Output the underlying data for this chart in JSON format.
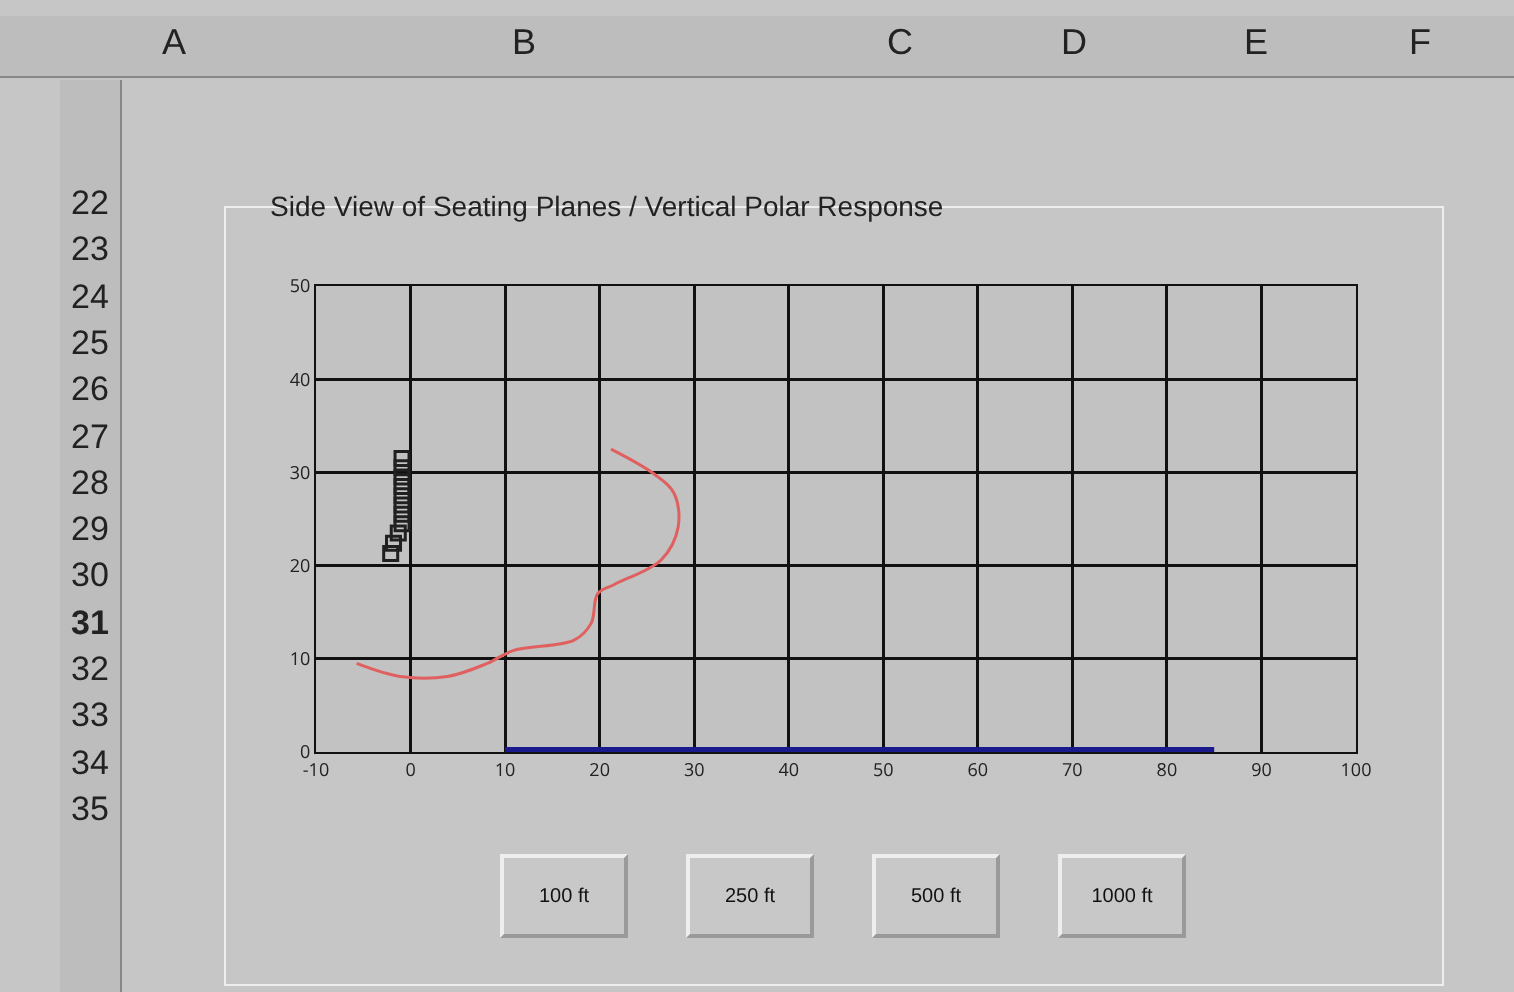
{
  "chart_data": {
    "type": "line",
    "title": "Side View of Seating Planes / Vertical Polar Response",
    "xlim": [
      -10,
      100
    ],
    "xticks": [
      -10,
      0,
      10,
      20,
      30,
      40,
      50,
      60,
      70,
      80,
      90,
      100
    ],
    "ylim": [
      0,
      50
    ],
    "yticks": [
      0,
      10,
      20,
      30,
      40,
      50
    ],
    "grid": true,
    "legend": false,
    "series": [
      {
        "color": "#e06060",
        "x": [
          -5.7,
          -1.1,
          3.9,
          8.1,
          10.9,
          17.3,
          19.1,
          19.8,
          21.6,
          26.5,
          28.3,
          27.9,
          25.8,
          21.2
        ],
        "values": [
          9.5,
          8.1,
          8.1,
          9.5,
          10.9,
          12,
          13.8,
          17,
          18,
          20.6,
          24.1,
          27.7,
          29.8,
          32.5
        ]
      },
      {
        "type": "scatter",
        "marker": "square",
        "color": "#202020",
        "x": [
          -2.1,
          -1.8,
          -1.3,
          -0.9,
          -0.9,
          -0.9,
          -0.9,
          -0.9,
          -0.9,
          -0.9,
          -0.9
        ],
        "values": [
          21.3,
          22.4,
          23.5,
          24.5,
          25.5,
          26.5,
          27.5,
          28.5,
          29.5,
          30.5,
          31.5
        ]
      },
      {
        "color": "#1a1a8c",
        "x": [
          10,
          85
        ],
        "values": [
          0,
          0
        ]
      }
    ],
    "annotations": [
      "A",
      "B",
      "C",
      "D",
      "E",
      "F",
      "22",
      "23",
      "24",
      "25",
      "26",
      "27",
      "28",
      "29",
      "30",
      "31",
      "32",
      "33",
      "34",
      "35",
      "100 ft",
      "250 ft",
      "500 ft",
      "1000 ft"
    ]
  }
}
